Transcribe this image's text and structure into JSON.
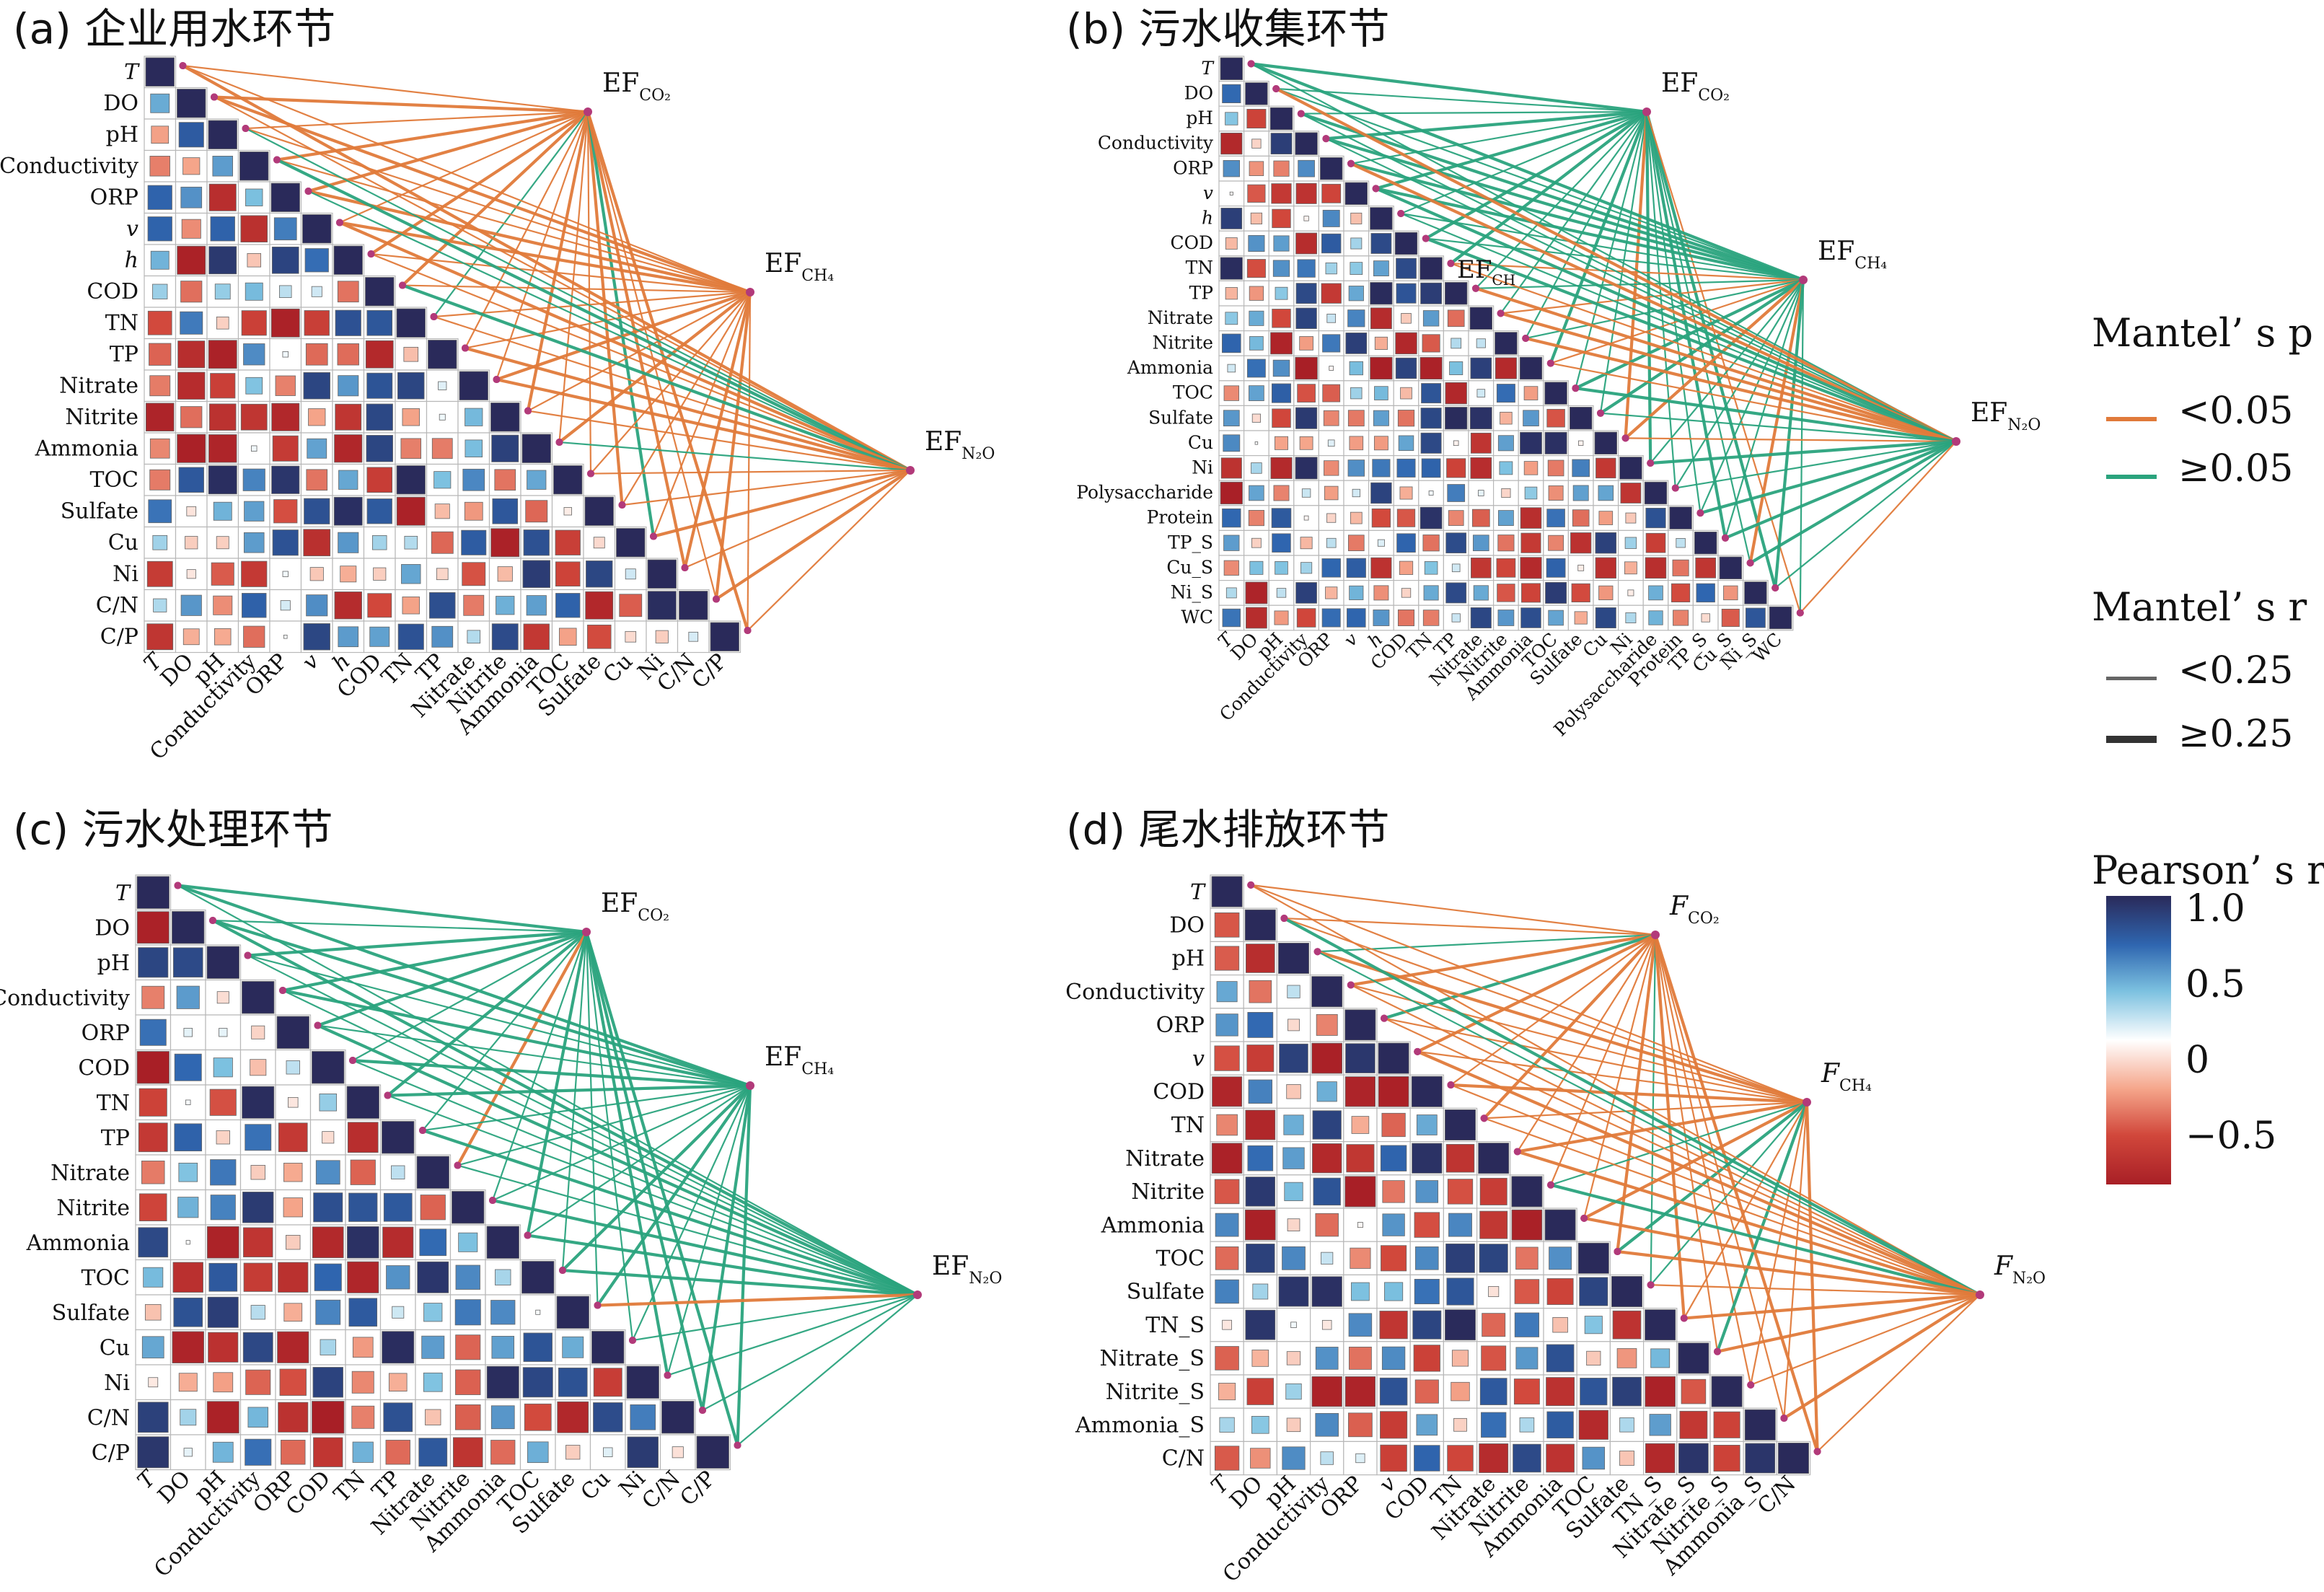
{
  "legend": {
    "mantel_p_title": "Mantel’ s p",
    "p_levels": [
      {
        "label": "<0.05",
        "color": "#e07a3a"
      },
      {
        "label": "≥0.05",
        "color": "#2aa37d"
      }
    ],
    "mantel_r_title": "Mantel’ s r",
    "r_levels": [
      {
        "label": "<0.25",
        "width": "thin"
      },
      {
        "label": "≥0.25",
        "width": "thick"
      }
    ],
    "pearson_title": "Pearson’ s r",
    "pearson_ticks": [
      "1.0",
      "0.5",
      "0",
      "−0.5"
    ],
    "pearson_colors": [
      "#2a2a5a",
      "#2f66b0",
      "#7cc1e0",
      "#ffffff",
      "#f5a58a",
      "#d1473b",
      "#a81f26"
    ]
  },
  "chart_data": [
    {
      "type": "heatmap",
      "panel_label": "(a) 企业用水环节",
      "variables": [
        "T",
        "DO",
        "pH",
        "Conductivity",
        "ORP",
        "v",
        "h",
        "COD",
        "TN",
        "TP",
        "Nitrate",
        "Nitrite",
        "Ammonia",
        "TOC",
        "Sulfate",
        "Cu",
        "Ni",
        "C/N",
        "C/P"
      ],
      "italic_variables": [
        "T",
        "v",
        "h"
      ],
      "targets": [
        {
          "label": "EF",
          "sub": "CO₂",
          "lines": "mostly p<0.05"
        },
        {
          "label": "EF",
          "sub": "CH₄",
          "lines": "mostly p<0.05"
        },
        {
          "label": "EF",
          "sub": "N₂O",
          "lines": "mostly p<0.05"
        }
      ],
      "dominant_link_color": "#e07a3a"
    },
    {
      "type": "heatmap",
      "panel_label": "(b) 污水收集环节",
      "variables": [
        "T",
        "DO",
        "pH",
        "Conductivity",
        "ORP",
        "v",
        "h",
        "COD",
        "TN",
        "TP",
        "Nitrate",
        "Nitrite",
        "Ammonia",
        "TOC",
        "Sulfate",
        "Cu",
        "Ni",
        "Polysaccharide",
        "Protein",
        "TP_S",
        "Cu_S",
        "Ni_S",
        "WC"
      ],
      "italic_variables": [
        "T",
        "v",
        "h"
      ],
      "targets": [
        {
          "label": "EF",
          "sub": "CO₂",
          "lines": "mostly p≥0.05"
        },
        {
          "label": "EF",
          "sub": "CH₄",
          "lines": "mixed"
        },
        {
          "label": "EF",
          "sub": "N₂O",
          "lines": "mixed"
        }
      ],
      "overlay_label": "EF",
      "overlay_sub": "CH",
      "dominant_link_color": "#2aa37d"
    },
    {
      "type": "heatmap",
      "panel_label": "(c) 污水处理环节",
      "variables": [
        "T",
        "DO",
        "pH",
        "Conductivity",
        "ORP",
        "COD",
        "TN",
        "TP",
        "Nitrate",
        "Nitrite",
        "Ammonia",
        "TOC",
        "Sulfate",
        "Cu",
        "Ni",
        "C/N",
        "C/P"
      ],
      "italic_variables": [
        "T"
      ],
      "targets": [
        {
          "label": "EF",
          "sub": "CO₂",
          "lines": "mostly p≥0.05"
        },
        {
          "label": "EF",
          "sub": "CH₄",
          "lines": "mostly p≥0.05"
        },
        {
          "label": "EF",
          "sub": "N₂O",
          "lines": "mostly p≥0.05"
        }
      ],
      "dominant_link_color": "#2aa37d"
    },
    {
      "type": "heatmap",
      "panel_label": "(d) 尾水排放环节",
      "variables": [
        "T",
        "DO",
        "pH",
        "Conductivity",
        "ORP",
        "v",
        "COD",
        "TN",
        "Nitrate",
        "Nitrite",
        "Ammonia",
        "TOC",
        "Sulfate",
        "TN_S",
        "Nitrate_S",
        "Nitrite_S",
        "Ammonia_S",
        "C/N"
      ],
      "italic_variables": [
        "T",
        "v"
      ],
      "targets": [
        {
          "label": "F",
          "sub": "CO₂",
          "lines": "mostly p<0.05"
        },
        {
          "label": "F",
          "sub": "CH₄",
          "lines": "mostly p<0.05"
        },
        {
          "label": "F",
          "sub": "N₂O",
          "lines": "mostly p<0.05"
        }
      ],
      "dominant_link_color": "#e07a3a"
    }
  ]
}
